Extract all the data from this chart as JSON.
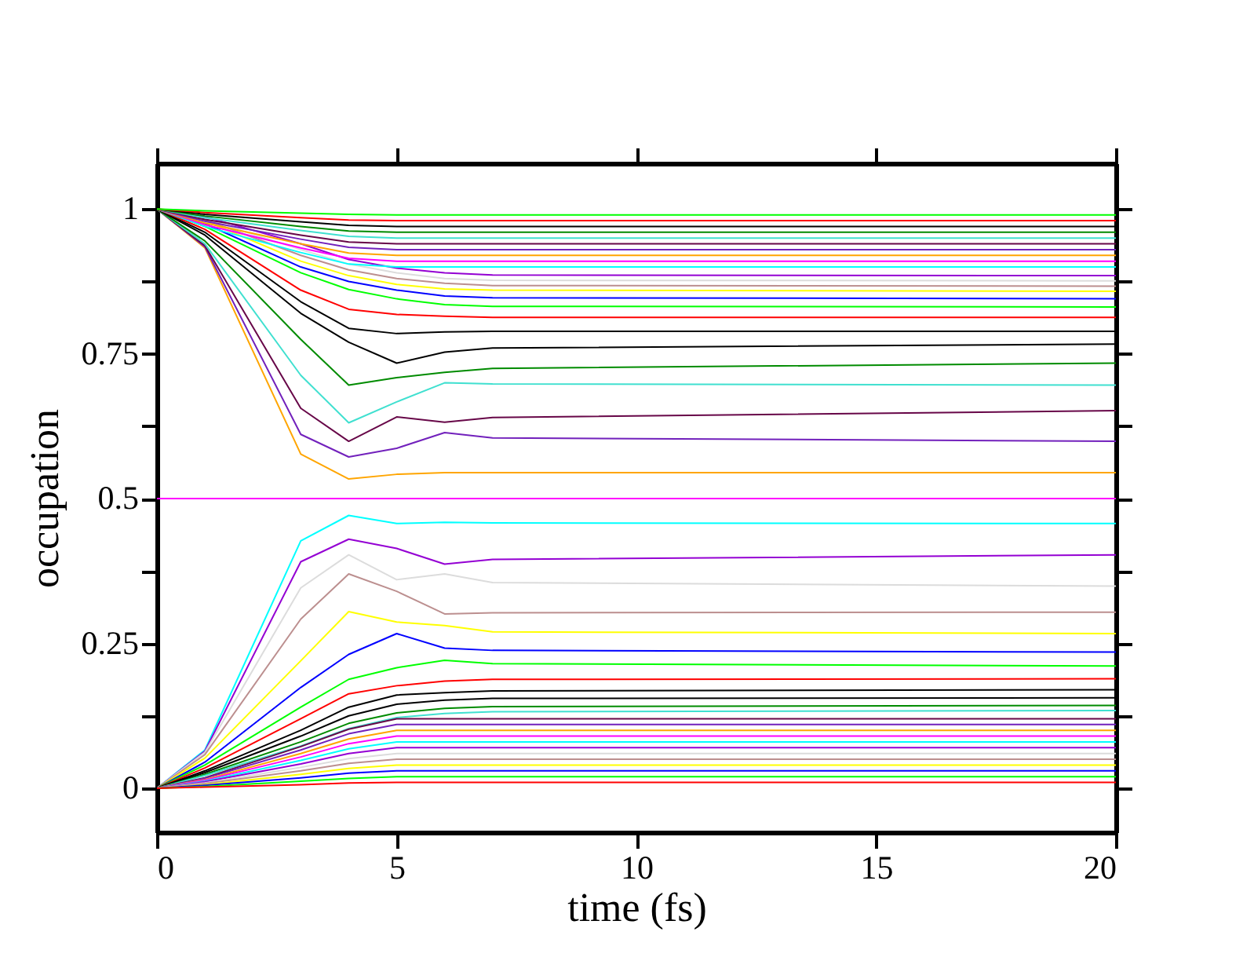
{
  "chart_data": {
    "type": "line",
    "xlabel": "time (fs)",
    "ylabel": "occupation",
    "x": [
      0,
      1,
      3,
      4,
      5,
      6,
      7,
      20
    ],
    "xlim": [
      0,
      20
    ],
    "xticks": [
      0,
      5,
      10,
      15,
      20
    ],
    "ylim": [
      -0.076,
      1.079
    ],
    "yticks": [
      0,
      {
        "value": 0.125,
        "label": null
      },
      0.25,
      {
        "value": 0.375,
        "label": null
      },
      0.5,
      {
        "value": 0.625,
        "label": null
      },
      0.75,
      {
        "value": 0.875,
        "label": null
      },
      1
    ],
    "series": [
      {
        "color": "#ffa500",
        "values": [
          1,
          0.933,
          0.577,
          0.534,
          0.542,
          0.545,
          0.545,
          0.545
        ]
      },
      {
        "color": "#7221bc",
        "values": [
          1,
          0.935,
          0.611,
          0.572,
          0.587,
          0.614,
          0.605,
          0.599
        ]
      },
      {
        "color": "#670748",
        "values": [
          1,
          0.937,
          0.656,
          0.599,
          0.641,
          0.632,
          0.64,
          0.652
        ]
      },
      {
        "color": "#40e0d0",
        "values": [
          1,
          0.94,
          0.713,
          0.631,
          0.667,
          0.7,
          0.698,
          0.696
        ]
      },
      {
        "color": "#008b00",
        "values": [
          1,
          0.945,
          0.775,
          0.696,
          0.709,
          0.718,
          0.725,
          0.734
        ]
      },
      {
        "color": "#000000",
        "values": [
          1,
          0.955,
          0.82,
          0.77,
          0.734,
          0.753,
          0.76,
          0.767
        ]
      },
      {
        "color": "#000000",
        "values": [
          1,
          0.96,
          0.84,
          0.794,
          0.785,
          0.788,
          0.789,
          0.789
        ]
      },
      {
        "color": "#ff0000",
        "values": [
          1,
          0.965,
          0.86,
          0.827,
          0.818,
          0.815,
          0.813,
          0.813
        ]
      },
      {
        "color": "#00ff00",
        "values": [
          1,
          0.97,
          0.89,
          0.861,
          0.845,
          0.835,
          0.832,
          0.831
        ]
      },
      {
        "color": "#0000ff",
        "values": [
          1,
          0.975,
          0.9,
          0.875,
          0.86,
          0.85,
          0.847,
          0.845
        ]
      },
      {
        "color": "#ffff00",
        "values": [
          1,
          0.98,
          0.91,
          0.885,
          0.87,
          0.862,
          0.86,
          0.858
        ]
      },
      {
        "color": "#bc8f8f",
        "values": [
          1,
          0.982,
          0.92,
          0.895,
          0.88,
          0.872,
          0.868,
          0.867
        ]
      },
      {
        "color": "#dcdcdc",
        "values": [
          1,
          0.983,
          0.93,
          0.905,
          0.89,
          0.88,
          0.877,
          0.876
        ]
      },
      {
        "color": "#9400d3",
        "values": [
          1,
          0.987,
          0.94,
          0.913,
          0.898,
          0.89,
          0.886,
          0.885
        ]
      },
      {
        "color": "#00ffff",
        "values": [
          1,
          0.97,
          0.925,
          0.905,
          0.9,
          0.9,
          0.9,
          0.9
        ]
      },
      {
        "color": "#ff00ff",
        "values": [
          1,
          0.973,
          0.933,
          0.915,
          0.91,
          0.91,
          0.91,
          0.91
        ]
      },
      {
        "color": "#ffa500",
        "values": [
          1,
          0.976,
          0.94,
          0.924,
          0.92,
          0.92,
          0.92,
          0.92
        ]
      },
      {
        "color": "#7221bc",
        "values": [
          1,
          0.979,
          0.948,
          0.934,
          0.93,
          0.93,
          0.93,
          0.93
        ]
      },
      {
        "color": "#670748",
        "values": [
          1,
          0.982,
          0.955,
          0.943,
          0.94,
          0.94,
          0.94,
          0.94
        ]
      },
      {
        "color": "#40e0d0",
        "values": [
          1,
          0.985,
          0.963,
          0.953,
          0.95,
          0.95,
          0.95,
          0.95
        ]
      },
      {
        "color": "#008b00",
        "values": [
          1,
          0.988,
          0.97,
          0.962,
          0.96,
          0.96,
          0.96,
          0.96
        ]
      },
      {
        "color": "#000000",
        "values": [
          1,
          0.991,
          0.978,
          0.972,
          0.97,
          0.97,
          0.97,
          0.97
        ]
      },
      {
        "color": "#ff0000",
        "values": [
          1,
          0.994,
          0.985,
          0.981,
          0.98,
          0.98,
          0.98,
          0.98
        ]
      },
      {
        "color": "#00ff00",
        "values": [
          1,
          0.997,
          0.993,
          0.991,
          0.99,
          0.99,
          0.99,
          0.99
        ]
      },
      {
        "color": "#ff00ff",
        "values": [
          0.5,
          0.5,
          0.5,
          0.5,
          0.5,
          0.5,
          0.5,
          0.5
        ]
      },
      {
        "color": "#00ffff",
        "values": [
          0,
          0.066,
          0.427,
          0.471,
          0.457,
          0.459,
          0.458,
          0.457
        ]
      },
      {
        "color": "#9400d3",
        "values": [
          0,
          0.064,
          0.391,
          0.43,
          0.414,
          0.387,
          0.395,
          0.403
        ]
      },
      {
        "color": "#dcdcdc",
        "values": [
          0,
          0.062,
          0.346,
          0.403,
          0.36,
          0.37,
          0.355,
          0.349
        ]
      },
      {
        "color": "#bc8f8f",
        "values": [
          0,
          0.058,
          0.292,
          0.37,
          0.34,
          0.301,
          0.303,
          0.304
        ]
      },
      {
        "color": "#ffff00",
        "values": [
          0,
          0.052,
          0.22,
          0.305,
          0.287,
          0.281,
          0.27,
          0.267
        ]
      },
      {
        "color": "#0000ff",
        "values": [
          0,
          0.045,
          0.174,
          0.231,
          0.267,
          0.242,
          0.238,
          0.235
        ]
      },
      {
        "color": "#00ff00",
        "values": [
          0,
          0.04,
          0.14,
          0.188,
          0.208,
          0.221,
          0.215,
          0.211
        ]
      },
      {
        "color": "#ff0000",
        "values": [
          0,
          0.035,
          0.12,
          0.163,
          0.177,
          0.185,
          0.188,
          0.189
        ]
      },
      {
        "color": "#000000",
        "values": [
          0,
          0.03,
          0.1,
          0.14,
          0.161,
          0.165,
          0.168,
          0.17
        ]
      },
      {
        "color": "#000000",
        "values": [
          0,
          0.027,
          0.09,
          0.125,
          0.145,
          0.152,
          0.155,
          0.156
        ]
      },
      {
        "color": "#008b00",
        "values": [
          0,
          0.024,
          0.08,
          0.112,
          0.13,
          0.138,
          0.141,
          0.143
        ]
      },
      {
        "color": "#40e0d0",
        "values": [
          0,
          0.022,
          0.073,
          0.103,
          0.122,
          0.129,
          0.132,
          0.134
        ]
      },
      {
        "color": "#670748",
        "values": [
          0,
          0.018,
          0.072,
          0.102,
          0.12,
          0.12,
          0.12,
          0.12
        ]
      },
      {
        "color": "#7221bc",
        "values": [
          0,
          0.017,
          0.066,
          0.094,
          0.11,
          0.11,
          0.11,
          0.11
        ]
      },
      {
        "color": "#ffa500",
        "values": [
          0,
          0.015,
          0.06,
          0.085,
          0.1,
          0.1,
          0.1,
          0.1
        ]
      },
      {
        "color": "#ff00ff",
        "values": [
          0,
          0.014,
          0.054,
          0.077,
          0.09,
          0.09,
          0.09,
          0.09
        ]
      },
      {
        "color": "#00ffff",
        "values": [
          0,
          0.012,
          0.048,
          0.068,
          0.08,
          0.08,
          0.08,
          0.08
        ]
      },
      {
        "color": "#9400d3",
        "values": [
          0,
          0.011,
          0.042,
          0.06,
          0.07,
          0.07,
          0.07,
          0.07
        ]
      },
      {
        "color": "#dcdcdc",
        "values": [
          0,
          0.009,
          0.036,
          0.051,
          0.06,
          0.06,
          0.06,
          0.06
        ]
      },
      {
        "color": "#bc8f8f",
        "values": [
          0,
          0.008,
          0.03,
          0.043,
          0.05,
          0.05,
          0.05,
          0.05
        ]
      },
      {
        "color": "#ffff00",
        "values": [
          0,
          0.006,
          0.024,
          0.034,
          0.04,
          0.04,
          0.04,
          0.04
        ]
      },
      {
        "color": "#0000ff",
        "values": [
          0,
          0.005,
          0.018,
          0.026,
          0.03,
          0.03,
          0.03,
          0.03
        ]
      },
      {
        "color": "#00ff00",
        "values": [
          0,
          0.003,
          0.012,
          0.017,
          0.02,
          0.02,
          0.02,
          0.02
        ]
      },
      {
        "color": "#ff0000",
        "values": [
          0,
          0.002,
          0.006,
          0.009,
          0.01,
          0.01,
          0.01,
          0.01
        ]
      }
    ]
  }
}
